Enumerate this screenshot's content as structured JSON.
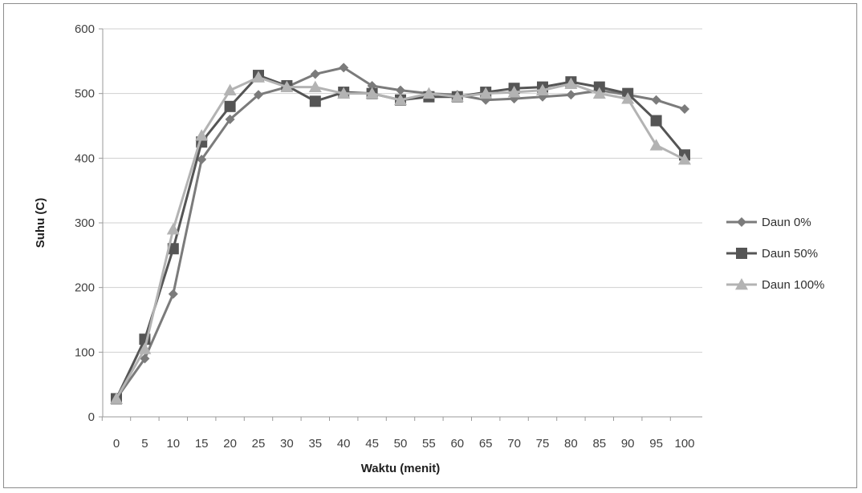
{
  "chart_data": {
    "type": "line",
    "title": "",
    "xlabel": "Waktu (menit)",
    "ylabel": "Suhu (C)",
    "ylim": [
      0,
      600
    ],
    "yticks": [
      0,
      100,
      200,
      300,
      400,
      500,
      600
    ],
    "grid": true,
    "legend_position": "right",
    "categories": [
      "0",
      "5",
      "10",
      "15",
      "20",
      "25",
      "30",
      "35",
      "40",
      "45",
      "50",
      "55",
      "60",
      "65",
      "70",
      "75",
      "80",
      "85",
      "90",
      "95",
      "100"
    ],
    "series": [
      {
        "name": "Daun 0%",
        "marker": "diamond",
        "color": "#7b7b7b",
        "values": [
          28,
          90,
          190,
          398,
          460,
          498,
          510,
          530,
          540,
          512,
          505,
          500,
          498,
          490,
          492,
          495,
          498,
          505,
          498,
          490,
          476
        ]
      },
      {
        "name": "Daun 50%",
        "marker": "square",
        "color": "#555555",
        "values": [
          28,
          120,
          260,
          425,
          480,
          528,
          512,
          488,
          502,
          500,
          490,
          495,
          495,
          502,
          508,
          510,
          518,
          510,
          500,
          458,
          405
        ]
      },
      {
        "name": "Daun 100%",
        "marker": "triangle",
        "color": "#b3b3b3",
        "values": [
          28,
          105,
          290,
          435,
          505,
          525,
          510,
          510,
          500,
          500,
          490,
          500,
          495,
          500,
          502,
          505,
          515,
          500,
          492,
          420,
          398
        ]
      }
    ]
  }
}
